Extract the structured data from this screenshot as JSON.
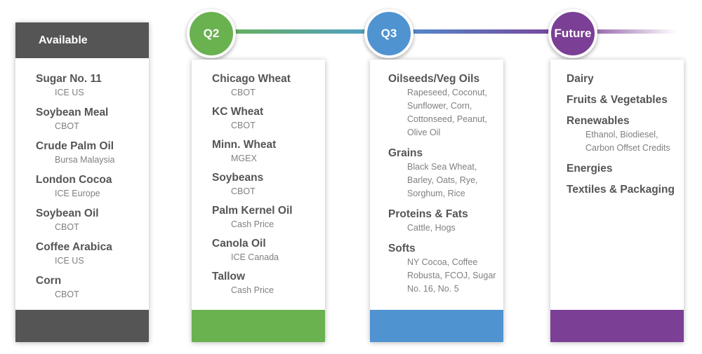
{
  "milestones": {
    "q2": "Q2",
    "q3": "Q3",
    "future": "Future"
  },
  "available": {
    "header": "Available",
    "items": [
      {
        "title": "Sugar No. 11",
        "sub": "ICE US"
      },
      {
        "title": "Soybean Meal",
        "sub": "CBOT"
      },
      {
        "title": "Crude Palm Oil",
        "sub": "Bursa Malaysia"
      },
      {
        "title": "London Cocoa",
        "sub": "ICE Europe"
      },
      {
        "title": "Soybean Oil",
        "sub": "CBOT"
      },
      {
        "title": "Coffee Arabica",
        "sub": "ICE US"
      },
      {
        "title": "Corn",
        "sub": "CBOT"
      }
    ]
  },
  "q2": {
    "items": [
      {
        "title": "Chicago Wheat",
        "sub": "CBOT"
      },
      {
        "title": "KC Wheat",
        "sub": "CBOT"
      },
      {
        "title": "Minn. Wheat",
        "sub": "MGEX"
      },
      {
        "title": "Soybeans",
        "sub": "CBOT"
      },
      {
        "title": "Palm Kernel Oil",
        "sub": "Cash Price"
      },
      {
        "title": "Canola Oil",
        "sub": "ICE Canada"
      },
      {
        "title": "Tallow",
        "sub": "Cash Price"
      }
    ]
  },
  "q3": {
    "items": [
      {
        "title": "Oilseeds/Veg Oils",
        "sub": "Rapeseed, Coconut, Sunflower, Corn, Cottonseed, Peanut, Olive Oil"
      },
      {
        "title": "Grains",
        "sub": "Black Sea Wheat, Barley, Oats, Rye, Sorghum, Rice"
      },
      {
        "title": "Proteins & Fats",
        "sub": "Cattle, Hogs"
      },
      {
        "title": "Softs",
        "sub": "NY Cocoa, Coffee Robusta, FCOJ,  Sugar No. 16, No. 5"
      }
    ]
  },
  "future": {
    "items": [
      {
        "title": "Dairy",
        "sub": ""
      },
      {
        "title": "Fruits & Vegetables",
        "sub": ""
      },
      {
        "title": "Renewables",
        "sub": "Ethanol, Biodiesel, Carbon Offset Credits"
      },
      {
        "title": "Energies",
        "sub": ""
      },
      {
        "title": "Textiles & Packaging",
        "sub": ""
      }
    ]
  }
}
